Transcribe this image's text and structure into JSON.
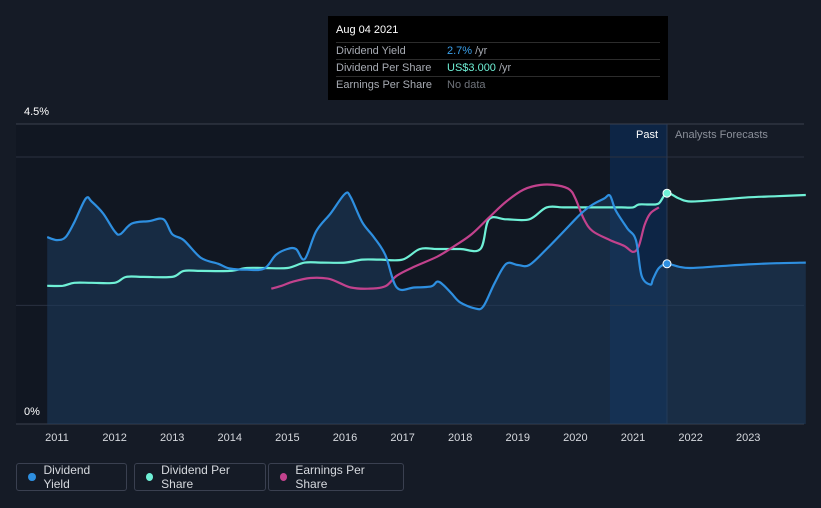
{
  "tooltip": {
    "date": "Aug 04 2021",
    "rows": [
      {
        "label": "Dividend Yield",
        "value": "2.7%",
        "unit": "/yr"
      },
      {
        "label": "Dividend Per Share",
        "value": "US$3.000",
        "unit": "/yr"
      },
      {
        "label": "Earnings Per Share",
        "value": "No data",
        "unit": ""
      }
    ]
  },
  "regions": {
    "past": "Past",
    "forecast": "Analysts Forecasts"
  },
  "legend": [
    {
      "label": "Dividend Yield",
      "color": "#2e8fe0"
    },
    {
      "label": "Dividend Per Share",
      "color": "#6ff0d6"
    },
    {
      "label": "Earnings Per Share",
      "color": "#c2428d"
    }
  ],
  "chart_data": {
    "type": "line",
    "y_tick_labels": [
      "4.5%",
      "0%"
    ],
    "ylim": [
      0,
      4.5
    ],
    "xlim": [
      2010.8,
      2024.0
    ],
    "x_tick_labels": [
      "2011",
      "2012",
      "2013",
      "2014",
      "2015",
      "2016",
      "2017",
      "2018",
      "2019",
      "2020",
      "2021",
      "2022",
      "2023"
    ],
    "past_forecast_split": 2021.59,
    "forecast_shade_start": 2020.6,
    "series": [
      {
        "name": "Dividend Yield",
        "color": "#2e8fe0",
        "unit": "%",
        "points": [
          [
            2010.83,
            3.15
          ],
          [
            2011.0,
            3.1
          ],
          [
            2011.15,
            3.15
          ],
          [
            2011.3,
            3.4
          ],
          [
            2011.5,
            3.8
          ],
          [
            2011.6,
            3.75
          ],
          [
            2011.8,
            3.55
          ],
          [
            2012.0,
            3.25
          ],
          [
            2012.1,
            3.2
          ],
          [
            2012.3,
            3.38
          ],
          [
            2012.6,
            3.42
          ],
          [
            2012.85,
            3.45
          ],
          [
            2013.0,
            3.2
          ],
          [
            2013.2,
            3.1
          ],
          [
            2013.5,
            2.8
          ],
          [
            2013.8,
            2.7
          ],
          [
            2014.0,
            2.62
          ],
          [
            2014.3,
            2.6
          ],
          [
            2014.6,
            2.62
          ],
          [
            2014.8,
            2.85
          ],
          [
            2015.0,
            2.95
          ],
          [
            2015.15,
            2.95
          ],
          [
            2015.3,
            2.78
          ],
          [
            2015.5,
            3.25
          ],
          [
            2015.75,
            3.55
          ],
          [
            2016.0,
            3.88
          ],
          [
            2016.1,
            3.82
          ],
          [
            2016.3,
            3.4
          ],
          [
            2016.5,
            3.15
          ],
          [
            2016.7,
            2.85
          ],
          [
            2016.9,
            2.3
          ],
          [
            2017.2,
            2.3
          ],
          [
            2017.5,
            2.32
          ],
          [
            2017.6,
            2.4
          ],
          [
            2017.7,
            2.35
          ],
          [
            2017.85,
            2.2
          ],
          [
            2018.0,
            2.05
          ],
          [
            2018.25,
            1.95
          ],
          [
            2018.4,
            1.98
          ],
          [
            2018.6,
            2.38
          ],
          [
            2018.8,
            2.7
          ],
          [
            2019.0,
            2.68
          ],
          [
            2019.2,
            2.68
          ],
          [
            2019.5,
            2.95
          ],
          [
            2019.9,
            3.35
          ],
          [
            2020.1,
            3.55
          ],
          [
            2020.3,
            3.7
          ],
          [
            2020.5,
            3.8
          ],
          [
            2020.6,
            3.85
          ],
          [
            2020.7,
            3.6
          ],
          [
            2020.9,
            3.3
          ],
          [
            2021.05,
            3.1
          ],
          [
            2021.15,
            2.5
          ],
          [
            2021.3,
            2.35
          ],
          [
            2021.35,
            2.45
          ],
          [
            2021.45,
            2.63
          ],
          [
            2021.59,
            2.7
          ],
          [
            2021.8,
            2.65
          ],
          [
            2022.0,
            2.63
          ],
          [
            2022.5,
            2.66
          ],
          [
            2023.0,
            2.69
          ],
          [
            2023.5,
            2.71
          ],
          [
            2024.0,
            2.72
          ]
        ]
      },
      {
        "name": "Dividend Per Share",
        "color": "#6ff0d6",
        "points": [
          [
            2010.83,
            2.33
          ],
          [
            2011.1,
            2.33
          ],
          [
            2011.3,
            2.38
          ],
          [
            2011.6,
            2.38
          ],
          [
            2012.0,
            2.38
          ],
          [
            2012.2,
            2.48
          ],
          [
            2012.5,
            2.48
          ],
          [
            2013.0,
            2.48
          ],
          [
            2013.2,
            2.58
          ],
          [
            2013.5,
            2.58
          ],
          [
            2014.0,
            2.58
          ],
          [
            2014.3,
            2.63
          ],
          [
            2014.6,
            2.63
          ],
          [
            2015.0,
            2.63
          ],
          [
            2015.3,
            2.72
          ],
          [
            2015.6,
            2.72
          ],
          [
            2016.0,
            2.72
          ],
          [
            2016.3,
            2.77
          ],
          [
            2016.6,
            2.77
          ],
          [
            2017.0,
            2.77
          ],
          [
            2017.3,
            2.95
          ],
          [
            2017.6,
            2.95
          ],
          [
            2018.0,
            2.95
          ],
          [
            2018.35,
            2.95
          ],
          [
            2018.5,
            3.45
          ],
          [
            2018.8,
            3.45
          ],
          [
            2019.2,
            3.45
          ],
          [
            2019.5,
            3.65
          ],
          [
            2019.8,
            3.65
          ],
          [
            2020.2,
            3.65
          ],
          [
            2020.6,
            3.65
          ],
          [
            2020.8,
            3.65
          ],
          [
            2021.0,
            3.65
          ],
          [
            2021.1,
            3.7
          ],
          [
            2021.3,
            3.7
          ],
          [
            2021.45,
            3.72
          ],
          [
            2021.59,
            3.89
          ],
          [
            2021.8,
            3.8
          ],
          [
            2022.0,
            3.75
          ],
          [
            2022.5,
            3.78
          ],
          [
            2023.0,
            3.82
          ],
          [
            2023.5,
            3.84
          ],
          [
            2024.0,
            3.86
          ]
        ]
      },
      {
        "name": "Earnings Per Share",
        "color": "#c2428d",
        "points": [
          [
            2014.72,
            2.28
          ],
          [
            2014.9,
            2.33
          ],
          [
            2015.1,
            2.4
          ],
          [
            2015.4,
            2.46
          ],
          [
            2015.7,
            2.45
          ],
          [
            2015.9,
            2.38
          ],
          [
            2016.1,
            2.3
          ],
          [
            2016.4,
            2.28
          ],
          [
            2016.7,
            2.32
          ],
          [
            2016.9,
            2.5
          ],
          [
            2017.2,
            2.65
          ],
          [
            2017.6,
            2.82
          ],
          [
            2017.9,
            3.0
          ],
          [
            2018.2,
            3.2
          ],
          [
            2018.5,
            3.48
          ],
          [
            2018.8,
            3.75
          ],
          [
            2019.1,
            3.95
          ],
          [
            2019.4,
            4.03
          ],
          [
            2019.7,
            4.02
          ],
          [
            2019.9,
            3.95
          ],
          [
            2020.0,
            3.8
          ],
          [
            2020.15,
            3.45
          ],
          [
            2020.3,
            3.25
          ],
          [
            2020.6,
            3.1
          ],
          [
            2020.85,
            3.0
          ],
          [
            2021.0,
            2.9
          ],
          [
            2021.1,
            3.0
          ],
          [
            2021.2,
            3.35
          ],
          [
            2021.3,
            3.55
          ],
          [
            2021.45,
            3.65
          ]
        ]
      }
    ]
  }
}
